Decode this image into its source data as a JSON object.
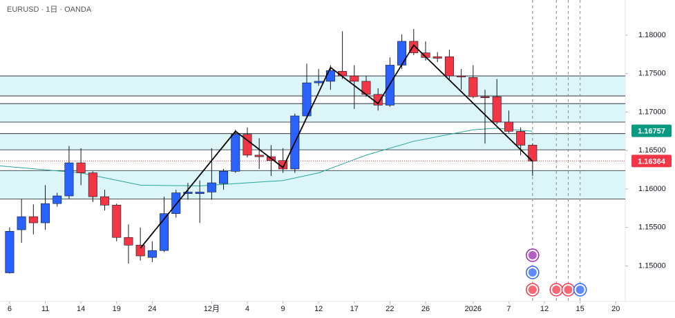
{
  "chart_data": {
    "type": "candlestick",
    "title": "EURUSD · 1日 · OANDA",
    "up_color": "#2962ff",
    "down_color": "#f23645",
    "open": [
      1.1491,
      1.1547,
      1.1564,
      1.1556,
      1.1581,
      1.1591,
      1.1634,
      1.1621,
      1.159,
      1.1579,
      1.1537,
      1.1527,
      1.1511,
      1.152,
      1.1568,
      1.1594,
      1.1594,
      1.1596,
      1.1607,
      1.1623,
      1.1671,
      1.1644,
      1.1642,
      1.1637,
      1.1626,
      1.1695,
      1.1738,
      1.174,
      1.1753,
      1.1747,
      1.174,
      1.1723,
      1.1709,
      1.1761,
      1.1792,
      1.1777,
      1.1772,
      1.1772,
      1.1747,
      1.1745,
      1.172,
      1.172,
      1.1687,
      1.1675,
      1.1657
    ],
    "high": [
      1.155,
      1.1587,
      1.158,
      1.1605,
      1.1595,
      1.1656,
      1.1653,
      1.1623,
      1.1599,
      1.1581,
      1.1554,
      1.155,
      1.1532,
      1.159,
      1.1599,
      1.1608,
      1.1611,
      1.1653,
      1.1626,
      1.1677,
      1.168,
      1.1666,
      1.1657,
      1.1653,
      1.1698,
      1.1763,
      1.1756,
      1.1761,
      1.1805,
      1.1761,
      1.1747,
      1.1731,
      1.1771,
      1.1801,
      1.1808,
      1.1792,
      1.1778,
      1.1781,
      1.1756,
      1.1761,
      1.1729,
      1.1743,
      1.1702,
      1.168,
      1.1659
    ],
    "low": [
      1.149,
      1.153,
      1.1541,
      1.1547,
      1.1577,
      1.1587,
      1.1605,
      1.1583,
      1.1572,
      1.1532,
      1.1503,
      1.1507,
      1.1505,
      1.1518,
      1.1563,
      1.1586,
      1.1556,
      1.1586,
      1.1599,
      1.1621,
      1.1641,
      1.1626,
      1.1617,
      1.1621,
      1.1621,
      1.1693,
      1.1734,
      1.1729,
      1.1743,
      1.1704,
      1.172,
      1.1702,
      1.1707,
      1.1756,
      1.1774,
      1.1767,
      1.1765,
      1.1743,
      1.1729,
      1.1718,
      1.1659,
      1.1684,
      1.1673,
      1.1644,
      1.1617
    ],
    "close": [
      1.1545,
      1.1564,
      1.1556,
      1.1581,
      1.1591,
      1.1634,
      1.1621,
      1.159,
      1.1579,
      1.1537,
      1.1527,
      1.1513,
      1.152,
      1.1568,
      1.1595,
      1.1596,
      1.1596,
      1.1608,
      1.1623,
      1.1671,
      1.1644,
      1.1642,
      1.1637,
      1.1626,
      1.1695,
      1.1738,
      1.174,
      1.1754,
      1.1747,
      1.174,
      1.1723,
      1.1709,
      1.1761,
      1.1792,
      1.1777,
      1.1771,
      1.177,
      1.1747,
      1.1746,
      1.172,
      1.1719,
      1.1687,
      1.1675,
      1.1657,
      1.16364
    ],
    "moving_average": {
      "color": "#26a69a",
      "x": [
        -0.8,
        6,
        11,
        16,
        23,
        26,
        30,
        34,
        39,
        41,
        44
      ],
      "values": [
        1.163,
        1.1621,
        1.1605,
        1.1604,
        1.1611,
        1.1621,
        1.1644,
        1.1662,
        1.1677,
        1.1679,
        1.1675
      ]
    },
    "zigzag": {
      "color": "#000000",
      "x": [
        11,
        19,
        23,
        27,
        31,
        34,
        44
      ],
      "values": [
        1.1523,
        1.1675,
        1.1628,
        1.1758,
        1.1711,
        1.1787,
        1.1636
      ]
    },
    "zones": [
      [
        1.1747,
        1.1721
      ],
      [
        1.1711,
        1.1687
      ],
      [
        1.1672,
        1.1651
      ],
      [
        1.1624,
        1.1587
      ]
    ],
    "zone_color": "#dcf5f8",
    "event_lines": [
      44,
      46,
      47,
      48
    ],
    "price_tags": [
      {
        "value": 1.16757,
        "color": "#089981"
      },
      {
        "value": 1.16364,
        "color": "#f23645"
      }
    ],
    "xlim": [
      -0.81,
      51.8
    ],
    "ylim": [
      1.14538,
      1.18457
    ],
    "xticks": [
      {
        "value": 0,
        "label": "6"
      },
      {
        "value": 3,
        "label": "11"
      },
      {
        "value": 6,
        "label": "14"
      },
      {
        "value": 9,
        "label": "19"
      },
      {
        "value": 12,
        "label": "24"
      },
      {
        "value": 17,
        "label": "12月"
      },
      {
        "value": 20,
        "label": "4"
      },
      {
        "value": 23,
        "label": "9"
      },
      {
        "value": 26,
        "label": "12"
      },
      {
        "value": 29,
        "label": "17"
      },
      {
        "value": 32,
        "label": "22"
      },
      {
        "value": 35,
        "label": "26"
      },
      {
        "value": 39,
        "label": "2026"
      },
      {
        "value": 42,
        "label": "7"
      },
      {
        "value": 45,
        "label": "12"
      },
      {
        "value": 48,
        "label": "15"
      },
      {
        "value": 51,
        "label": "20"
      }
    ],
    "yticks": [
      {
        "value": 1.15,
        "label": "1.15000"
      },
      {
        "value": 1.155,
        "label": "1.15500"
      },
      {
        "value": 1.16,
        "label": "1.16000"
      },
      {
        "value": 1.165,
        "label": "1.16500"
      },
      {
        "value": 1.17,
        "label": "1.17000"
      },
      {
        "value": 1.175,
        "label": "1.17500"
      },
      {
        "value": 1.18,
        "label": "1.18000"
      }
    ]
  }
}
